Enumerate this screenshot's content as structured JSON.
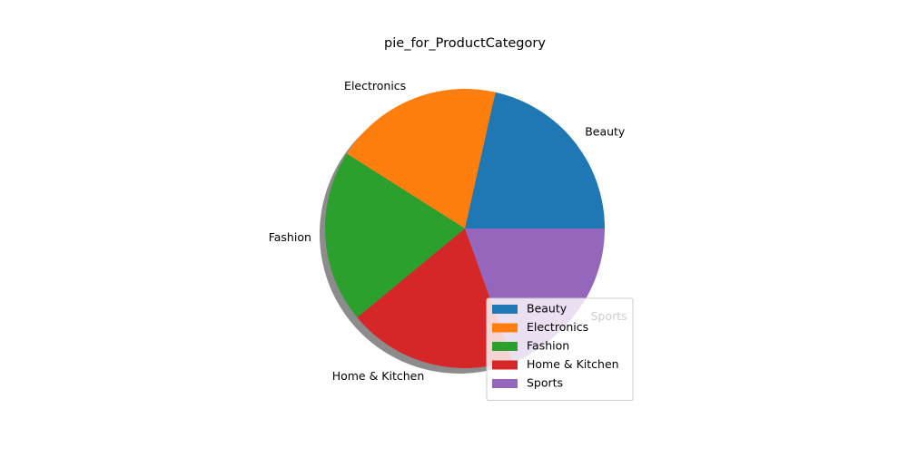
{
  "chart_data": {
    "type": "pie",
    "title": "pie_for_ProductCategory",
    "categories": [
      "Beauty",
      "Electronics",
      "Fashion",
      "Home & Kitchen",
      "Sports"
    ],
    "values": [
      21.5,
      19.5,
      20.0,
      19.5,
      19.5
    ],
    "colors": [
      "#1f77b4",
      "#ff7f0e",
      "#2ca02c",
      "#d62728",
      "#9467bd"
    ],
    "start_angle": 0,
    "counterclockwise": true,
    "shadow": true,
    "legend": {
      "position": "lower-right",
      "entries": [
        "Beauty",
        "Electronics",
        "Fashion",
        "Home & Kitchen",
        "Sports"
      ]
    }
  }
}
